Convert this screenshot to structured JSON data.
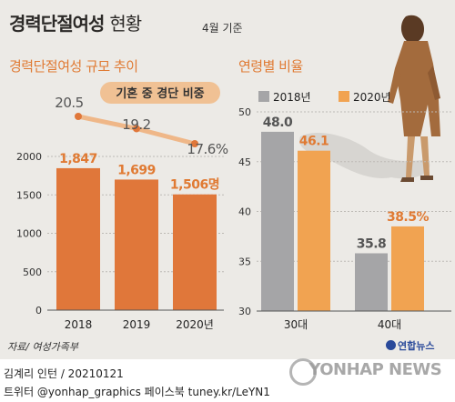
{
  "header": {
    "title_bold": "경력단절여성",
    "title_light": "현황",
    "date_note": "4월 기준"
  },
  "left_chart": {
    "subtitle": "경력단절여성 규모 추이",
    "line_legend": "기혼 중 경단 비중"
  },
  "right_chart": {
    "subtitle": "연령별 비율"
  },
  "footer": {
    "source": "자료/ 여성가족부",
    "credit1": "김계리 인턴 / 20210121",
    "credit2": "트위터 @yonhap_graphics  페이스북 tuney.kr/LeYN1",
    "logo": "연합뉴스",
    "watermark": "YONHAP NEWS"
  },
  "colors": {
    "orange_bar": "#e0773a",
    "light_orange": "#f1a351",
    "gray_bar": "#a5a5a7",
    "line": "#efb788",
    "accent_text": "#e07a33"
  },
  "chart_data": [
    {
      "type": "bar",
      "categories": [
        "2018",
        "2019",
        "2020년"
      ],
      "values": [
        1847,
        1699,
        1506
      ],
      "value_labels": [
        "1,847",
        "1,699",
        "1,506명"
      ],
      "ylim": [
        0,
        2000
      ],
      "yticks": [
        "0",
        "500",
        "1000",
        "1500",
        "2000"
      ],
      "ytick_values": [
        0,
        500,
        1000,
        1500,
        2000
      ],
      "line_series": {
        "name": "기혼 중 경단 비중",
        "values": [
          20.5,
          19.2,
          17.6
        ],
        "labels": [
          "20.5",
          "19.2",
          "17.6%"
        ]
      },
      "grid": true
    },
    {
      "type": "bar",
      "categories": [
        "30대",
        "40대"
      ],
      "series": [
        {
          "name": "2018년",
          "values": [
            48.0,
            35.8
          ],
          "labels": [
            "48.0",
            "35.8"
          ]
        },
        {
          "name": "2020년",
          "values": [
            46.1,
            38.5
          ],
          "labels": [
            "46.1",
            "38.5%"
          ]
        }
      ],
      "ylim": [
        30,
        50
      ],
      "yticks": [
        "30",
        "35",
        "40",
        "45",
        "50"
      ],
      "ytick_values": [
        30,
        35,
        40,
        45,
        50
      ],
      "legend": "top",
      "grid": true
    }
  ]
}
